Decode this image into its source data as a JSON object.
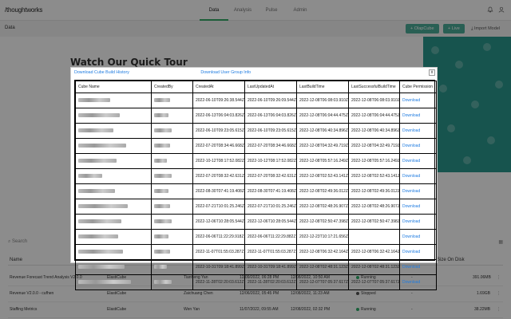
{
  "app": {
    "logo": "/thoughtworks"
  },
  "nav": {
    "items": [
      "Data",
      "Analysis",
      "Pulse",
      "Admin"
    ],
    "active": "Data"
  },
  "subbar": {
    "title": "Data",
    "olap_button": "+ OlapCube",
    "live_button": "+ Live",
    "import_button": "Import Model"
  },
  "background": {
    "tour_title": "Watch Our Quick Tour",
    "search_placeholder": "Search",
    "list_header": {
      "name": "Name",
      "size": "Size On Disk"
    },
    "rows": [
      {
        "name": "Revenue Forecast Trend Analysis V2.0.0",
        "type": "ElastiCube",
        "owner": "Tianheng Yan",
        "created": "12/09/2022, 06:28 PM",
        "updated": "12/08/2022, 10:50 AM",
        "status": "Running",
        "status_color": "#2fb06a",
        "dash": "-",
        "size": "391.06MB"
      },
      {
        "name": "Revenue V2.0.0 - cufhen",
        "type": "ElastiCube",
        "owner": "Zaichuang Chen",
        "created": "12/06/2022, 05:45 PM",
        "updated": "12/08/2022, 11:23 AM",
        "status": "Stopped",
        "status_color": "#555555",
        "dash": "-",
        "size": "1.69GB"
      },
      {
        "name": "Staffing Metrics",
        "type": "ElastiCube",
        "owner": "Wen Yan",
        "created": "11/07/2022, 09:55 AM",
        "updated": "12/08/2022, 02:32 PM",
        "status": "Running",
        "status_color": "#2fb06a",
        "dash": "-",
        "size": "38.22MB"
      }
    ]
  },
  "modal": {
    "link_build_history": "Download Cube Build History",
    "link_user_group": "Download User Group Info",
    "close_label": "x",
    "columns": [
      "Cube Name",
      "CreatedBy",
      "CreatedAt",
      "LastUpdatedAt",
      "LastBuildTime",
      "LastSuccessfulBuildTime",
      "Cube Permission"
    ],
    "rows": [
      {
        "createdAt": "2022-06-10T09:26:38.544Z",
        "lastUpdated": "2022-06-10T09:26:09.544Z",
        "lastBuild": "2022-12-08T06:08:03.910Z",
        "lastSuccess": "2022-12-08T06:08:03.910Z",
        "permission": "Download"
      },
      {
        "createdAt": "2022-06-13T06:04:03.826Z",
        "lastUpdated": "2022-06-13T06:04:03.826Z",
        "lastBuild": "2022-12-08T06:04:44.475Z",
        "lastSuccess": "2022-12-08T06:04:44.475Z",
        "permission": "Download"
      },
      {
        "createdAt": "2022-06-10T09:23:05.615Z",
        "lastUpdated": "2022-06-10T09:23:05.615Z",
        "lastBuild": "2022-12-08T06:40:34.896Z",
        "lastSuccess": "2022-12-08T06:40:34.896Z",
        "permission": "Download"
      },
      {
        "createdAt": "2022-07-20T08:34:46.668Z",
        "lastUpdated": "2022-07-20T08:34:46.668Z",
        "lastBuild": "2022-12-08T04:32:49.719Z",
        "lastSuccess": "2022-12-08T04:32:49.719Z",
        "permission": "Download"
      },
      {
        "createdAt": "2022-10-12T08:17:52.082Z",
        "lastUpdated": "2022-10-12T08:17:52.082Z",
        "lastBuild": "2022-12-08T05:57:16.249Z",
        "lastSuccess": "2022-12-08T05:57:16.249Z",
        "permission": "Download"
      },
      {
        "createdAt": "2022-07-20T08:32:42.631Z",
        "lastUpdated": "2022-07-20T08:32:42.631Z",
        "lastBuild": "2022-12-08T02:52:43.141Z",
        "lastSuccess": "2022-12-08T02:52:43.141Z",
        "permission": "Download"
      },
      {
        "createdAt": "2022-08-30T07:41:19.408Z",
        "lastUpdated": "2022-08-30T07:41:19.408Z",
        "lastBuild": "2022-12-08T02:49:36.012Z",
        "lastSuccess": "2022-12-08T02:49:36.012Z",
        "permission": "Download"
      },
      {
        "createdAt": "2022-07-21T10:01:25.246Z",
        "lastUpdated": "2022-07-21T10:01:25.246Z",
        "lastBuild": "2022-12-08T02:48:26.907Z",
        "lastSuccess": "2022-12-08T02:48:26.907Z",
        "permission": "Download"
      },
      {
        "createdAt": "2022-12-06T10:28:05.544Z",
        "lastUpdated": "2022-12-06T10:28:05.544Z",
        "lastBuild": "2022-12-08T02:50:47.398Z",
        "lastSuccess": "2022-12-08T02:50:47.398Z",
        "permission": "Download"
      },
      {
        "createdAt": "2022-06-06T11:22:29.918Z",
        "lastUpdated": "2022-06-06T11:22:29.882Z",
        "lastBuild": "2022-12-23T10:17:21.656Z",
        "lastSuccess": "",
        "permission": "Download"
      },
      {
        "createdAt": "2022-11-07T01:55:03.287Z",
        "lastUpdated": "2022-11-07T01:55:03.287Z",
        "lastBuild": "2022-12-08T06:32:42.164Z",
        "lastSuccess": "2022-12-08T06:32:42.164Z",
        "permission": "Download"
      },
      {
        "createdAt": "2022-10-31T09:18:41.899Z",
        "lastUpdated": "2022-10-31T09:18:41.899Z",
        "lastBuild": "2022-12-08T02:48:31.123Z",
        "lastSuccess": "2022-12-08T02:48:31.123Z",
        "permission": "Download"
      },
      {
        "createdAt": "2022-11-28T02:20:03.612Z",
        "lastUpdated": "2022-11-28T02:20:03.612Z",
        "lastBuild": "2022-12-07T07:05:37.617Z",
        "lastSuccess": "2022-12-07T07:05:37.617Z",
        "permission": "Download"
      }
    ]
  }
}
